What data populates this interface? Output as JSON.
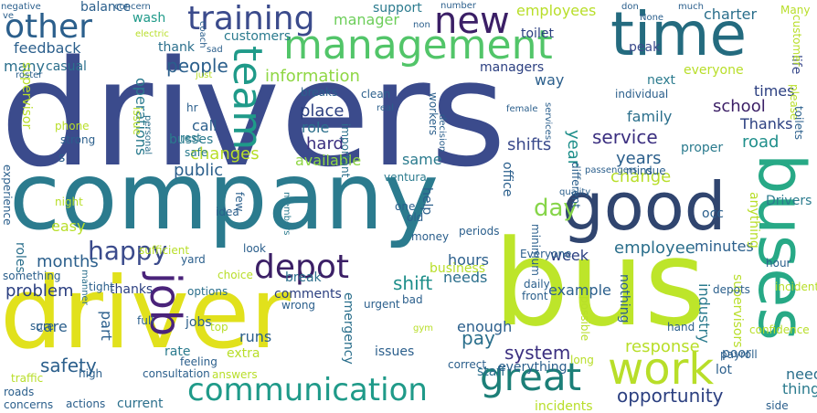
{
  "words": [
    {
      "text": "drivers",
      "color": "#3b4b8c"
    },
    {
      "text": "company",
      "color": "#2b7b8e"
    },
    {
      "text": "driver",
      "color": "#e1e11c"
    },
    {
      "text": "bus",
      "color": "#bde52a"
    },
    {
      "text": "good",
      "color": "#30456f"
    },
    {
      "text": "time",
      "color": "#246b7f"
    },
    {
      "text": "management",
      "color": "#52c569"
    },
    {
      "text": "buses",
      "color": "#27a986"
    },
    {
      "text": "new",
      "color": "#3b1f66"
    },
    {
      "text": "training",
      "color": "#3b4b8c"
    },
    {
      "text": "other",
      "color": "#2b5f8c"
    },
    {
      "text": "team",
      "color": "#1f9a89"
    },
    {
      "text": "work",
      "color": "#b8de29"
    },
    {
      "text": "great",
      "color": "#1c7f78"
    },
    {
      "text": "communication",
      "color": "#1f9a89"
    },
    {
      "text": "depot",
      "color": "#3b1f66"
    },
    {
      "text": "happy",
      "color": "#3b4b8c"
    },
    {
      "text": "job",
      "color": "#4a237a"
    },
    {
      "text": "day",
      "color": "#86d549"
    },
    {
      "text": "safety",
      "color": "#2b5f8c"
    },
    {
      "text": "system",
      "color": "#3b2f80"
    },
    {
      "text": "opportunity",
      "color": "#2b3f80"
    },
    {
      "text": "people",
      "color": "#2b5f8c"
    },
    {
      "text": "shift",
      "color": "#1f8f8b"
    },
    {
      "text": "pay",
      "color": "#2b6f8c"
    },
    {
      "text": "service",
      "color": "#3b2f80"
    },
    {
      "text": "information",
      "color": "#8fd744"
    },
    {
      "text": "months",
      "color": "#2b5f8c"
    },
    {
      "text": "school",
      "color": "#3b1f66"
    },
    {
      "text": "employees",
      "color": "#b8de29"
    },
    {
      "text": "charter",
      "color": "#2b6f8c"
    },
    {
      "text": "wash",
      "color": "#1f9a89"
    },
    {
      "text": "support",
      "color": "#2b7b8e"
    },
    {
      "text": "manager",
      "color": "#6cce59"
    },
    {
      "text": "customers",
      "color": "#2b7b8e"
    },
    {
      "text": "thank",
      "color": "#2b6f8c"
    },
    {
      "text": "feedback",
      "color": "#2b5f8c"
    },
    {
      "text": "balance",
      "color": "#2b5f8c"
    },
    {
      "text": "many",
      "color": "#2b6f8c"
    },
    {
      "text": "casual",
      "color": "#2b6f8c"
    },
    {
      "text": "managers",
      "color": "#2b3f80"
    },
    {
      "text": "toilet",
      "color": "#2b3f80"
    },
    {
      "text": "way",
      "color": "#2b5f8c"
    },
    {
      "text": "next",
      "color": "#2b7b8e"
    },
    {
      "text": "everyone",
      "color": "#b8de29"
    },
    {
      "text": "peak",
      "color": "#3b4b8c"
    },
    {
      "text": "life",
      "color": "#3b4b8c"
    },
    {
      "text": "times",
      "color": "#2b3f80"
    },
    {
      "text": "family",
      "color": "#2b6f8c"
    },
    {
      "text": "Thanks",
      "color": "#2b3f80"
    },
    {
      "text": "road",
      "color": "#1f8f8b"
    },
    {
      "text": "years",
      "color": "#2b5f8c"
    },
    {
      "text": "year",
      "color": "#1f8f8b"
    },
    {
      "text": "change",
      "color": "#b8de29"
    },
    {
      "text": "changes",
      "color": "#b8de29"
    },
    {
      "text": "public",
      "color": "#2b5f8c"
    },
    {
      "text": "place",
      "color": "#2b3f80"
    },
    {
      "text": "role",
      "color": "#2b6f8c"
    },
    {
      "text": "hard",
      "color": "#3b2f80"
    },
    {
      "text": "available",
      "color": "#8fd744"
    },
    {
      "text": "same",
      "color": "#2b7b8e"
    },
    {
      "text": "shifts",
      "color": "#3b4b8c"
    },
    {
      "text": "call",
      "color": "#2b5f8c"
    },
    {
      "text": "busses",
      "color": "#2b7b8e"
    },
    {
      "text": "operations",
      "color": "#2b7b8e"
    },
    {
      "text": "employee",
      "color": "#2b6f8c"
    },
    {
      "text": "minutes",
      "color": "#2b5f8c"
    },
    {
      "text": "week",
      "color": "#2b3f80"
    },
    {
      "text": "hours",
      "color": "#2b5f8c"
    },
    {
      "text": "needs",
      "color": "#2b6f8c"
    },
    {
      "text": "example",
      "color": "#2b5f8c"
    },
    {
      "text": "break",
      "color": "#2b6f8c"
    },
    {
      "text": "business",
      "color": "#b8de29"
    },
    {
      "text": "comments",
      "color": "#2b3f80"
    },
    {
      "text": "thanks",
      "color": "#2b3f80"
    },
    {
      "text": "problem",
      "color": "#2b3f80"
    },
    {
      "text": "part",
      "color": "#2b5f8c"
    },
    {
      "text": "care",
      "color": "#2b5f8c"
    },
    {
      "text": "easy",
      "color": "#b8de29"
    },
    {
      "text": "roles",
      "color": "#2b6f8c"
    },
    {
      "text": "runs",
      "color": "#2b5f8c"
    },
    {
      "text": "rate",
      "color": "#2b7b8e"
    },
    {
      "text": "jobs",
      "color": "#2b5f8c"
    },
    {
      "text": "extra",
      "color": "#b8de29"
    },
    {
      "text": "staff",
      "color": "#2b6f8c"
    },
    {
      "text": "issues",
      "color": "#2b5f8c"
    },
    {
      "text": "enough",
      "color": "#2b5f8c"
    },
    {
      "text": "response",
      "color": "#b8de29"
    },
    {
      "text": "industry",
      "color": "#2b7b8e"
    },
    {
      "text": "poor",
      "color": "#2b5f8c"
    },
    {
      "text": "lot",
      "color": "#2b5f8c"
    },
    {
      "text": "need",
      "color": "#2b6f8c"
    },
    {
      "text": "things",
      "color": "#2b7b8e"
    },
    {
      "text": "incidents",
      "color": "#b8de29"
    },
    {
      "text": "current",
      "color": "#2b6f8c"
    },
    {
      "text": "answers",
      "color": "#b8de29"
    },
    {
      "text": "everything",
      "color": "#2b5f8c"
    },
    {
      "text": "emergency",
      "color": "#2b6f8c"
    },
    {
      "text": "nothing",
      "color": "#2b5f8c"
    },
    {
      "text": "supervisors",
      "color": "#b8de29"
    },
    {
      "text": "supervisor",
      "color": "#b8de29"
    },
    {
      "text": "anything",
      "color": "#b8de29"
    },
    {
      "text": "Drivers",
      "color": "#2b7b8e"
    },
    {
      "text": "occ",
      "color": "#2b5f8c"
    },
    {
      "text": "proper",
      "color": "#2b7b8e"
    },
    {
      "text": "mins",
      "color": "#2b5f8c"
    },
    {
      "text": "due",
      "color": "#2b5f8c"
    },
    {
      "text": "office",
      "color": "#2b5f8c"
    },
    {
      "text": "help",
      "color": "#2b5f8c"
    },
    {
      "text": "one",
      "color": "#2b5f8c"
    },
    {
      "text": "old",
      "color": "#2b5f8c"
    },
    {
      "text": "ventura",
      "color": "#2b7b8e"
    },
    {
      "text": "workers",
      "color": "#2b5f8c"
    },
    {
      "text": "breaks",
      "color": "#2b5f8c"
    },
    {
      "text": "important",
      "color": "#2b6f8c"
    },
    {
      "text": "phone",
      "color": "#b8de29"
    },
    {
      "text": "strong",
      "color": "#2b5f8c"
    },
    {
      "text": "experience",
      "color": "#2b5f8c"
    },
    {
      "text": "night",
      "color": "#b8de29"
    },
    {
      "text": "s",
      "color": "#2b5f8c"
    },
    {
      "text": "hr",
      "color": "#2b5f8c"
    },
    {
      "text": "rest",
      "color": "#2b7b8e"
    },
    {
      "text": "safe",
      "color": "#2b7b8e"
    },
    {
      "text": "issue",
      "color": "#b8de29"
    },
    {
      "text": "personal",
      "color": "#2b6f8c"
    },
    {
      "text": "few",
      "color": "#2b5f8c"
    },
    {
      "text": "idea",
      "color": "#2b5f8c"
    },
    {
      "text": "members",
      "color": "#2b7b8e"
    },
    {
      "text": "look",
      "color": "#2b5f8c"
    },
    {
      "text": "yard",
      "color": "#2b5f8c"
    },
    {
      "text": "choice",
      "color": "#b8de29"
    },
    {
      "text": "sufficient",
      "color": "#b8de29"
    },
    {
      "text": "something",
      "color": "#2b5f8c"
    },
    {
      "text": "manner",
      "color": "#2b6f8c"
    },
    {
      "text": "tight",
      "color": "#2b5f8c"
    },
    {
      "text": "options",
      "color": "#2b6f8c"
    },
    {
      "text": "wrong",
      "color": "#2b5f8c"
    },
    {
      "text": "urgent",
      "color": "#2b5f8c"
    },
    {
      "text": "bad",
      "color": "#2b5f8c"
    },
    {
      "text": "money",
      "color": "#2b5f8c"
    },
    {
      "text": "periods",
      "color": "#2b5f8c"
    },
    {
      "text": "minimum",
      "color": "#2b5f8c"
    },
    {
      "text": "Everyone",
      "color": "#2b5f8c"
    },
    {
      "text": "different",
      "color": "#2b5f8c"
    },
    {
      "text": "quality",
      "color": "#2b5f8c"
    },
    {
      "text": "daily",
      "color": "#2b5f8c"
    },
    {
      "text": "front",
      "color": "#2b5f8c"
    },
    {
      "text": "possible",
      "color": "#b8de29"
    },
    {
      "text": "hand",
      "color": "#2b5f8c"
    },
    {
      "text": "confidence",
      "color": "#b8de29"
    },
    {
      "text": "depots",
      "color": "#2b5f8c"
    },
    {
      "text": "incident",
      "color": "#b8de29"
    },
    {
      "text": "hour",
      "color": "#2b5f8c"
    },
    {
      "text": "top",
      "color": "#b8de29"
    },
    {
      "text": "full",
      "color": "#2b5f8c"
    },
    {
      "text": "feeling",
      "color": "#2b5f8c"
    },
    {
      "text": "consultation",
      "color": "#2b5f8c"
    },
    {
      "text": "high",
      "color": "#2b5f8c"
    },
    {
      "text": "traffic",
      "color": "#b8de29"
    },
    {
      "text": "sure",
      "color": "#2b5f8c"
    },
    {
      "text": "roads",
      "color": "#2b5f8c"
    },
    {
      "text": "concerns",
      "color": "#2b5f8c"
    },
    {
      "text": "actions",
      "color": "#2b5f8c"
    },
    {
      "text": "number",
      "color": "#2b5f8c"
    },
    {
      "text": "correct",
      "color": "#2b5f8c"
    },
    {
      "text": "long",
      "color": "#b8de29"
    },
    {
      "text": "payroll",
      "color": "#2b5f8c"
    },
    {
      "text": "side",
      "color": "#2b5f8c"
    },
    {
      "text": "gym",
      "color": "#b8de29"
    },
    {
      "text": "individual",
      "color": "#2b5f8c"
    },
    {
      "text": "None",
      "color": "#2b5f8c"
    },
    {
      "text": "don",
      "color": "#2b5f8c"
    },
    {
      "text": "much",
      "color": "#2b5f8c"
    },
    {
      "text": "Many",
      "color": "#b8de29"
    },
    {
      "text": "customer",
      "color": "#b8de29"
    },
    {
      "text": "please",
      "color": "#b8de29"
    },
    {
      "text": "toilets",
      "color": "#2b5f8c"
    },
    {
      "text": "negative",
      "color": "#2b5f8c"
    },
    {
      "text": "ve",
      "color": "#2b5f8c"
    },
    {
      "text": "concern",
      "color": "#2b5f8c"
    },
    {
      "text": "electric",
      "color": "#b8de29"
    },
    {
      "text": "coach",
      "color": "#2b5f8c"
    },
    {
      "text": "non",
      "color": "#2b5f8c"
    },
    {
      "text": "roster",
      "color": "#2b5f8c"
    },
    {
      "text": "sad",
      "color": "#2b5f8c"
    },
    {
      "text": "just",
      "color": "#b8de29"
    },
    {
      "text": "clean",
      "color": "#2b5f8c"
    },
    {
      "text": "real",
      "color": "#2b5f8c"
    },
    {
      "text": "female",
      "color": "#2b5f8c"
    },
    {
      "text": "decision",
      "color": "#2b5f8c"
    },
    {
      "text": "services",
      "color": "#2b5f8c"
    },
    {
      "text": "passengers",
      "color": "#2b5f8c"
    }
  ]
}
